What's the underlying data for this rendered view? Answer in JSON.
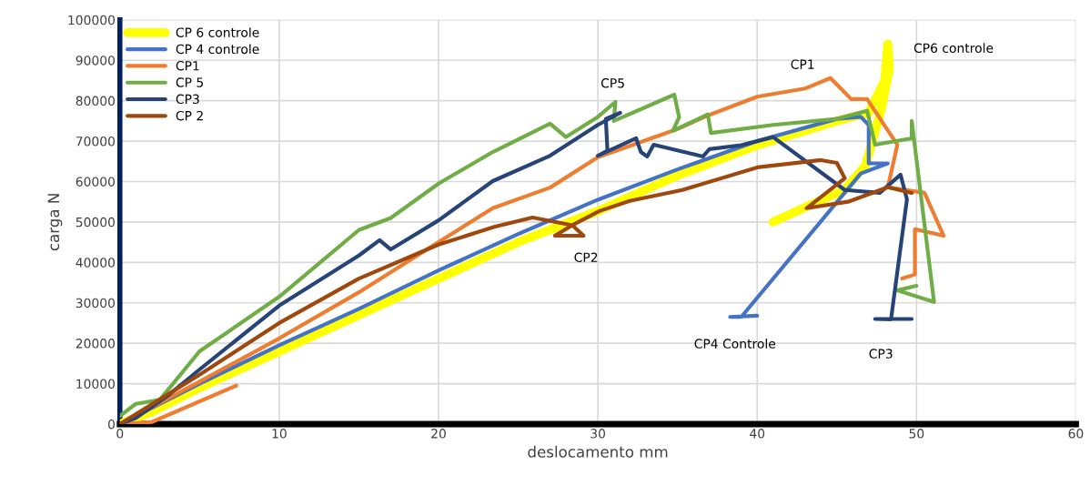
{
  "chart_data": {
    "type": "line",
    "xlabel": "deslocamento mm",
    "ylabel": "carga N",
    "xlim": [
      0,
      60
    ],
    "xticks": [
      0,
      10,
      20,
      30,
      40,
      50,
      60
    ],
    "ylim": [
      0,
      100000
    ],
    "yticks": [
      0,
      10000,
      20000,
      30000,
      40000,
      50000,
      60000,
      70000,
      80000,
      90000,
      100000
    ],
    "grid": true,
    "legend": "top left",
    "marker": "none",
    "line_style": "solid",
    "series": [
      {
        "name": "CP 6 controle",
        "color": "#ffff00",
        "x": [
          0,
          2,
          5,
          10,
          15,
          20,
          25,
          30,
          35,
          40,
          45,
          47,
          48,
          48.2,
          48.3,
          47.8,
          46.8,
          45.5,
          43.5,
          41
        ],
        "values": [
          0,
          3000,
          9000,
          18000,
          27000,
          36000,
          45000,
          52700,
          61500,
          69000,
          75000,
          77000,
          85000,
          94000,
          88000,
          78000,
          64000,
          58000,
          54500,
          50000
        ]
      },
      {
        "name": "CP 4 controle",
        "color": "#4472c4",
        "x": [
          0,
          5,
          10,
          15,
          20,
          25,
          30,
          35,
          40,
          45,
          46.5,
          47,
          47,
          48.2,
          46.5,
          39,
          38.3,
          40
        ],
        "values": [
          0,
          10000,
          19500,
          28500,
          38000,
          47000,
          55500,
          63000,
          70000,
          75500,
          76000,
          74000,
          64500,
          64500,
          62000,
          26500,
          26500,
          26800
        ]
      },
      {
        "name": "CP1",
        "color": "#ed7d31",
        "x": [
          7.3,
          2,
          0,
          5,
          10,
          15,
          20,
          23.4,
          27,
          30,
          35,
          37,
          40,
          43,
          44.6,
          45.9,
          46.9,
          48.8,
          48.2,
          50.5,
          51.7,
          49.9,
          49.9,
          49.1
        ],
        "values": [
          9500,
          500,
          0,
          10500,
          21200,
          32600,
          45000,
          53400,
          58500,
          66000,
          73000,
          76500,
          81000,
          83000,
          85600,
          80400,
          80400,
          69100,
          58600,
          57200,
          46600,
          48200,
          37000,
          36000
        ]
      },
      {
        "name": "CP 5",
        "color": "#70ad47",
        "x": [
          0,
          1,
          2.5,
          5,
          10,
          15,
          17,
          20,
          23.4,
          27,
          28,
          30,
          31.1,
          31,
          34.8,
          35.1,
          34.7,
          36.9,
          37.1,
          41,
          45,
          46.9,
          47.4,
          49.7,
          49.7,
          51.1,
          48.8,
          50
        ],
        "values": [
          2000,
          5000,
          6000,
          18000,
          31500,
          48000,
          51000,
          59500,
          67300,
          74300,
          71000,
          76000,
          79700,
          75000,
          81500,
          75900,
          72500,
          76600,
          72000,
          74000,
          75500,
          77500,
          69100,
          70700,
          75000,
          30200,
          33100,
          34200
        ]
      },
      {
        "name": "CP3",
        "color": "#264478",
        "x": [
          0,
          1,
          3,
          5,
          10,
          15,
          16.3,
          17,
          20,
          23.4,
          27,
          30,
          31.4,
          30.5,
          30.6,
          30,
          32.4,
          32.7,
          33.1,
          33.5,
          36.6,
          37,
          39,
          41,
          45.5,
          47.7,
          49,
          49.4,
          48.4,
          47.4,
          49.7
        ],
        "values": [
          0,
          1500,
          7000,
          13500,
          29300,
          41700,
          45500,
          43200,
          50400,
          60100,
          66400,
          74000,
          77000,
          75500,
          67600,
          66400,
          70700,
          67300,
          66200,
          69100,
          66200,
          68000,
          69000,
          71000,
          57900,
          57200,
          61700,
          55600,
          25900,
          26000,
          26000
        ]
      },
      {
        "name": "CP 2",
        "color": "#9e480e",
        "x": [
          0,
          5,
          10,
          15,
          20,
          23.5,
          25.9,
          28.4,
          29.1,
          27.3,
          28.4,
          30.1,
          32,
          35.3,
          40,
          44,
          45,
          45.5,
          43.1,
          45.7,
          48.2,
          49.7
        ],
        "values": [
          0,
          12200,
          25000,
          36000,
          44400,
          48800,
          51100,
          49200,
          46600,
          46600,
          49200,
          52700,
          55200,
          57900,
          63500,
          65300,
          64600,
          60800,
          53400,
          55000,
          58600,
          57200
        ]
      }
    ],
    "annotations": [
      {
        "text": "CP5",
        "x": 31.1,
        "y": 79700
      },
      {
        "text": "CP1",
        "x": 44.6,
        "y": 85600
      },
      {
        "text": "CP6 controle",
        "x": 48.2,
        "y": 94000
      },
      {
        "text": "CP2",
        "x": 29.1,
        "y": 46600
      },
      {
        "text": "CP4 Controle",
        "x": 39,
        "y": 26500
      },
      {
        "text": "CP3",
        "x": 48.4,
        "y": 25900
      }
    ]
  }
}
